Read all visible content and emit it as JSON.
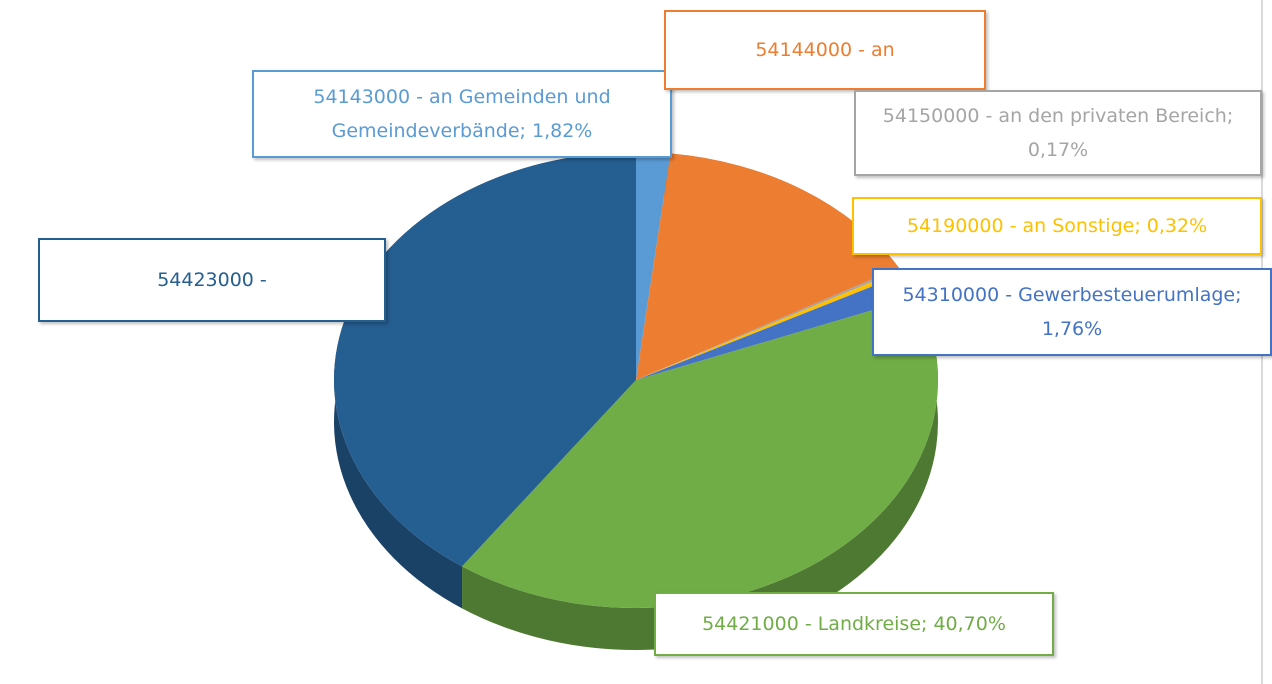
{
  "chart_data": {
    "type": "pie3d",
    "categories": [
      "54143000 - an Gemeinden und Gemeindeverbände; 1,82%",
      "54144000 - an",
      "54150000 - an den privaten Bereich; 0,17%",
      "54190000 - an Sonstige; 0,32%",
      "54310000 - Gewerbesteuerumlage; 1,76%",
      "54421000 - Landkreise; 40,70%",
      "54423000 -"
    ],
    "values": [
      1.82,
      15,
      0.17,
      0.32,
      1.76,
      40.7,
      40.23
    ],
    "colors": [
      "#5b9bd5",
      "#ed7d31",
      "#a5a5a5",
      "#ffc000",
      "#4472c4",
      "#70ad47",
      "#255e91"
    ]
  }
}
